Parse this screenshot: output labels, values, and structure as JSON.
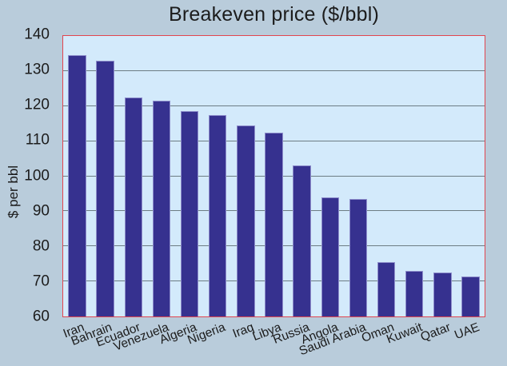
{
  "title": "Breakeven price ($/bbl)",
  "y_axis": {
    "label": "$ per bbl",
    "min": 60,
    "max": 140,
    "tick_step": 10
  },
  "chart_data": {
    "type": "bar",
    "title": "Breakeven price ($/bbl)",
    "categories": [
      "Iran",
      "Bahrain",
      "Ecuador",
      "Venezuela",
      "Algeria",
      "Nigeria",
      "Iraq",
      "Libya",
      "Russia",
      "Angola",
      "Saudi Arabia",
      "Oman",
      "Kuwait",
      "Qatar",
      "UAE"
    ],
    "values": [
      134.5,
      133,
      122.5,
      121.5,
      118.5,
      117.5,
      114.5,
      112.5,
      103,
      94,
      93.5,
      75.5,
      73,
      72.5,
      71.5
    ],
    "xlabel": "",
    "ylabel": "$ per bbl",
    "ylim": [
      60,
      140
    ],
    "ytick_step": 10,
    "yticks": [
      60,
      70,
      80,
      90,
      100,
      110,
      120,
      130,
      140
    ],
    "grid": true,
    "legend": "none"
  },
  "colors": {
    "figure_background": "#b9ccdb",
    "plot_background": "#d3eafb",
    "bar_fill": "#36318f",
    "bar_edge": "#8e8ecb",
    "plot_border": "#e2454f",
    "gridline": "#6d7d84",
    "text": "#1c1c1c"
  }
}
